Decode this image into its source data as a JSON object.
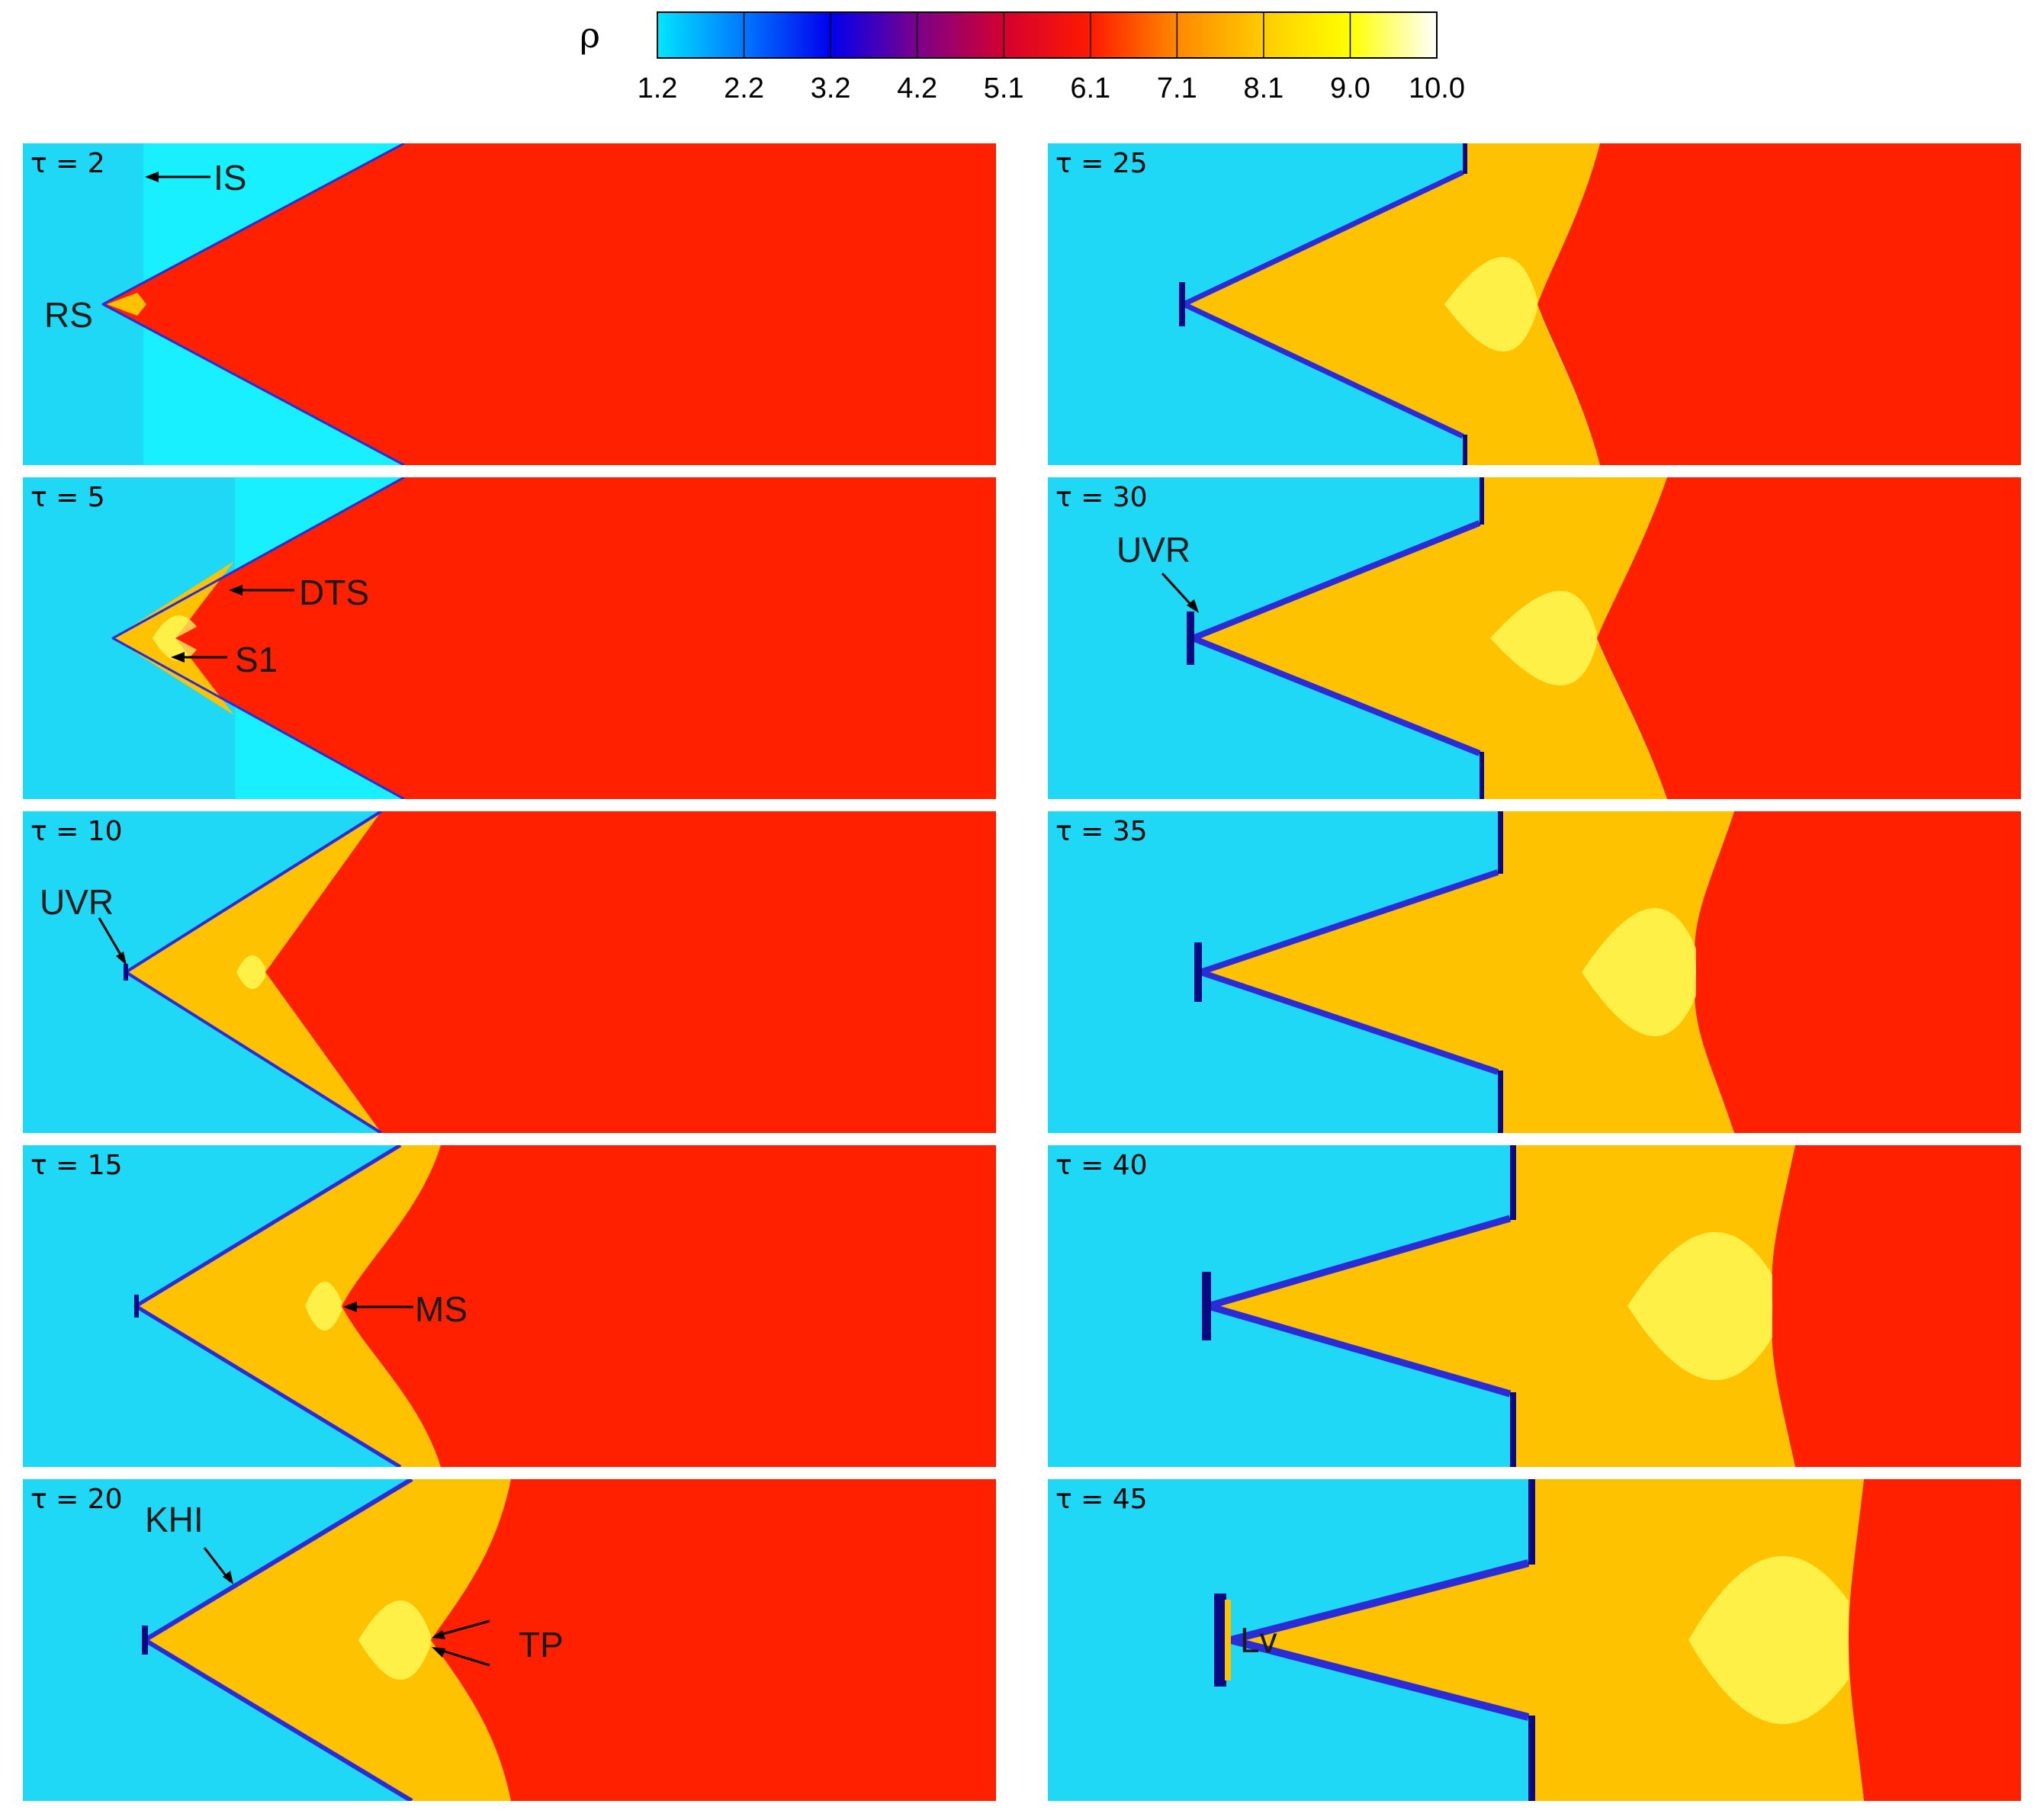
{
  "colorbar": {
    "variable": "ρ",
    "ticks": [
      "1.2",
      "2.2",
      "3.2",
      "4.2",
      "5.1",
      "6.1",
      "7.1",
      "8.1",
      "9.0",
      "10.0"
    ],
    "stops": [
      "#00e6ff",
      "#0077ff",
      "#0000ee",
      "#7a008a",
      "#d40030",
      "#ff1a00",
      "#ff8800",
      "#ffcc00",
      "#ffff00",
      "#ffffff"
    ]
  },
  "colors": {
    "ambient": "#1ed8f5",
    "shocked_ambient": "#18f0ff",
    "gas": "#ff2000",
    "compressed": "#ffc200",
    "highlight": "#ffff60",
    "interface": "#2b2bd8",
    "interface_dark": "#0a0a80"
  },
  "panels": [
    {
      "tau": "τ = 2",
      "annotations": [
        {
          "label": "IS"
        },
        {
          "label": "RS"
        }
      ]
    },
    {
      "tau": "τ = 5",
      "annotations": [
        {
          "label": "DTS"
        },
        {
          "label": "S1"
        }
      ]
    },
    {
      "tau": "τ = 10",
      "annotations": [
        {
          "label": "UVR"
        }
      ]
    },
    {
      "tau": "τ = 15",
      "annotations": [
        {
          "label": "MS"
        }
      ]
    },
    {
      "tau": "τ = 20",
      "annotations": [
        {
          "label": "KHI"
        },
        {
          "label": "TP"
        }
      ]
    },
    {
      "tau": "τ = 25",
      "annotations": []
    },
    {
      "tau": "τ = 30",
      "annotations": [
        {
          "label": "UVR"
        }
      ]
    },
    {
      "tau": "τ = 35",
      "annotations": []
    },
    {
      "tau": "τ = 40",
      "annotations": []
    },
    {
      "tau": "τ = 45",
      "annotations": [
        {
          "label": "Lv"
        }
      ]
    }
  ]
}
